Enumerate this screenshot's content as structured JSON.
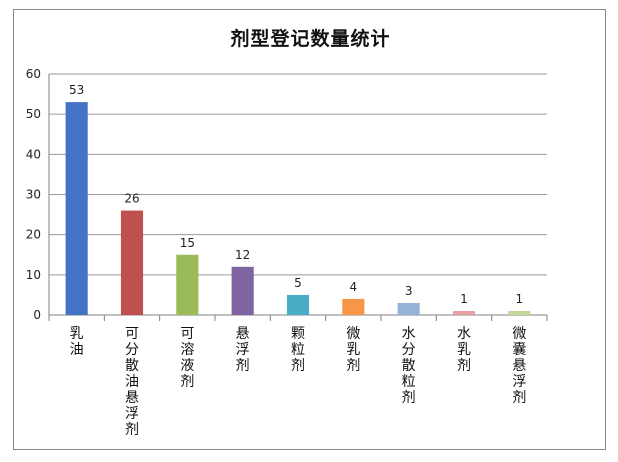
{
  "chart_data": {
    "type": "bar",
    "title": "剂型登记数量统计",
    "xlabel": "",
    "ylabel": "",
    "categories": [
      "乳油",
      "可分散油悬浮剂",
      "可溶液剂",
      "悬浮剂",
      "颗粒剂",
      "微乳剂",
      "水分散粒剂",
      "水乳剂",
      "微囊悬浮剂"
    ],
    "values": [
      53,
      26,
      15,
      12,
      5,
      4,
      3,
      1,
      1
    ],
    "colors": [
      "#4472c4",
      "#c0504d",
      "#9bbb59",
      "#8064a2",
      "#4bacc6",
      "#f79646",
      "#95b3d7",
      "#e6a0a0",
      "#c4d79b"
    ],
    "ylim": [
      0,
      60
    ],
    "yticks": [
      0,
      10,
      20,
      30,
      40,
      50,
      60
    ],
    "grid": true,
    "legend": "none",
    "data_labels": true
  }
}
